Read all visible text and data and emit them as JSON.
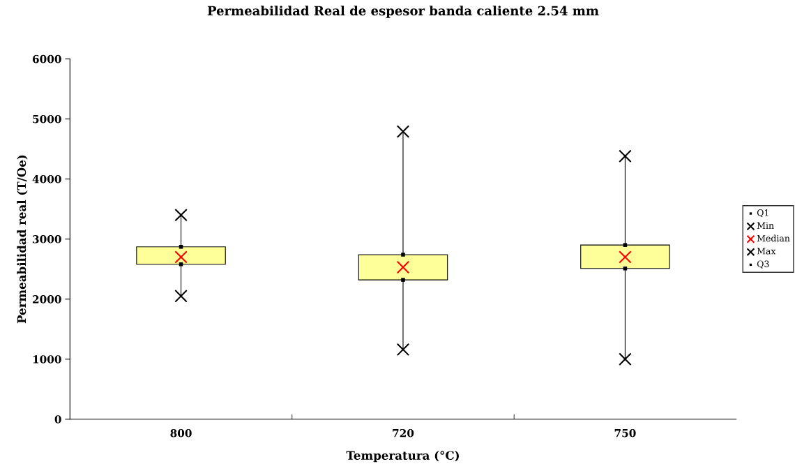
{
  "chart_data": {
    "type": "box",
    "title": "Permeabilidad Real de espesor banda caliente 2.54 mm",
    "xlabel": "Temperatura (°C)",
    "ylabel": "Permeabilidad real (T/Oe)",
    "categories": [
      "800",
      "720",
      "750"
    ],
    "color": "#ffff99",
    "boxes": [
      {
        "low": 2050,
        "q1": 2580,
        "q3": 2870,
        "high": 3400
      },
      {
        "low": 1160,
        "q1": 2320,
        "q3": 2740,
        "high": 4790
      },
      {
        "low": 1000,
        "q1": 2510,
        "q3": 2900,
        "high": 4380
      }
    ],
    "series": [
      {
        "name": "Q1",
        "type": "scatter",
        "marker": "square",
        "color": "#000000",
        "x": [
          "800",
          "720",
          "750"
        ],
        "values": [
          2580,
          2320,
          2510
        ]
      },
      {
        "name": "Min",
        "type": "scatter",
        "marker": "cross",
        "color": "#000000",
        "x": [
          "800",
          "720",
          "750"
        ],
        "values": [
          2050,
          1160,
          1000
        ]
      },
      {
        "name": "Median",
        "type": "scatter",
        "marker": "cross",
        "color": "#ff0000",
        "x": [
          "800",
          "720",
          "750"
        ],
        "values": [
          2700,
          2530,
          2700
        ]
      },
      {
        "name": "Max",
        "type": "scatter",
        "marker": "cross",
        "color": "#000000",
        "x": [
          "800",
          "720",
          "750"
        ],
        "values": [
          3400,
          4790,
          4380
        ]
      },
      {
        "name": "Q3",
        "type": "scatter",
        "marker": "square",
        "color": "#000000",
        "x": [
          "800",
          "720",
          "750"
        ],
        "values": [
          2870,
          2740,
          2900
        ]
      }
    ],
    "ylim": [
      0,
      6000
    ],
    "yticks": [
      0,
      1000,
      2000,
      3000,
      4000,
      5000,
      6000
    ],
    "grid": false,
    "legend": "right"
  }
}
